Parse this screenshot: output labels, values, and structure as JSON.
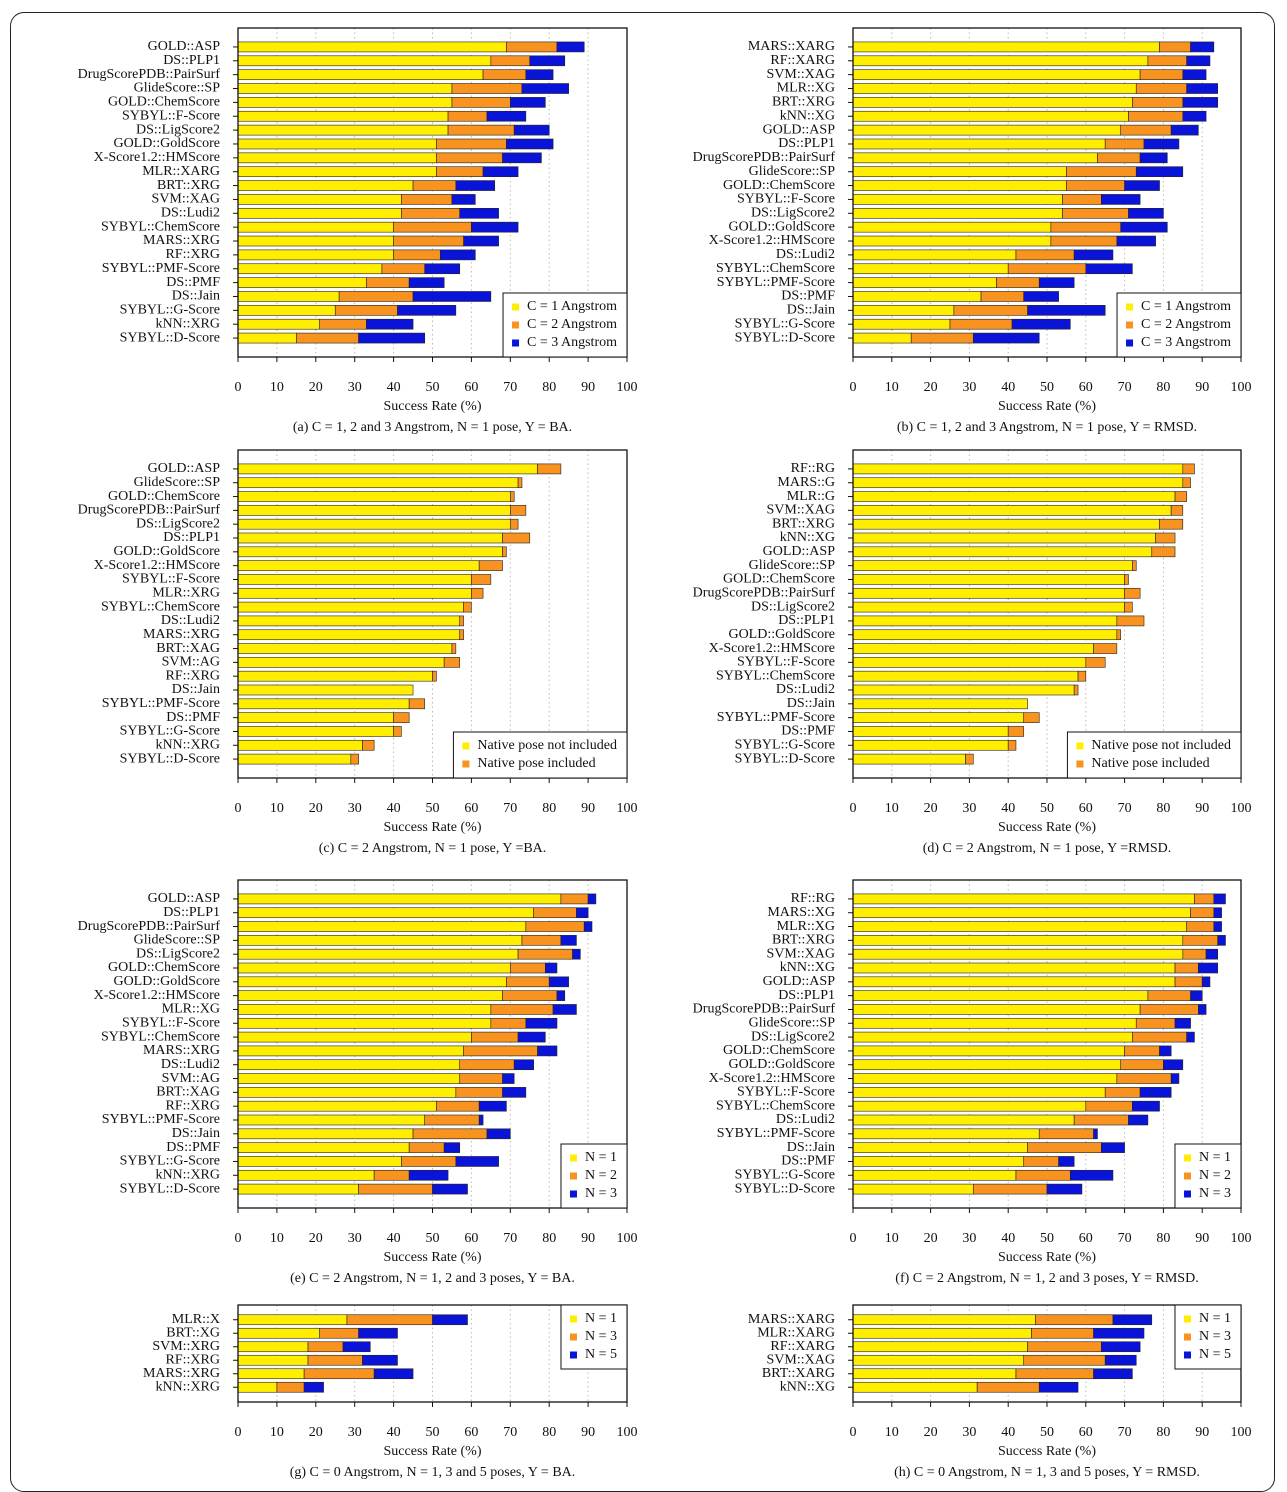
{
  "chart_data": [
    {
      "type": "stacked-barh",
      "caption": "(a) C = 1, 2 and 3 Angstrom, N = 1 pose, Y = BA.",
      "xlabel": "Success Rate (%)",
      "categories": [
        "GOLD::ASP",
        "DS::PLP1",
        "DrugScorePDB::PairSurf",
        "GlideScore::SP",
        "GOLD::ChemScore",
        "SYBYL::F-Score",
        "DS::LigScore2",
        "GOLD::GoldScore",
        "X-Score1.2::HMScore",
        "MLR::XARG",
        "BRT::XRG",
        "SVM::XAG",
        "DS::Ludi2",
        "SYBYL::ChemScore",
        "MARS::XRG",
        "RF::XRG",
        "SYBYL::PMF-Score",
        "DS::PMF",
        "DS::Jain",
        "SYBYL::G-Score",
        "kNN::XRG",
        "SYBYL::D-Score"
      ],
      "series": [
        {
          "name": "C = 1 Angstrom",
          "color": "#ffee00",
          "values": [
            69,
            65,
            63,
            55,
            55,
            54,
            54,
            51,
            51,
            51,
            45,
            42,
            42,
            40,
            40,
            40,
            37,
            33,
            26,
            25,
            21,
            15
          ]
        },
        {
          "name": "C = 2 Angstrom",
          "color": "#f7931e",
          "values": [
            13,
            10,
            11,
            18,
            15,
            10,
            17,
            18,
            17,
            12,
            11,
            13,
            15,
            20,
            18,
            12,
            11,
            11,
            19,
            16,
            12,
            16
          ]
        },
        {
          "name": "C = 3 Angstrom",
          "color": "#0a14d8",
          "values": [
            7,
            9,
            7,
            12,
            9,
            10,
            9,
            12,
            10,
            9,
            10,
            6,
            10,
            12,
            9,
            9,
            9,
            9,
            20,
            15,
            12,
            17
          ]
        }
      ],
      "xlim": [
        0,
        100
      ],
      "xticks": [
        0,
        10,
        20,
        30,
        40,
        50,
        60,
        70,
        80,
        90,
        100
      ],
      "grid": true,
      "legend": "lower right"
    },
    {
      "type": "stacked-barh",
      "caption": "(b) C = 1, 2 and 3 Angstrom, N = 1 pose, Y = RMSD.",
      "xlabel": "Success Rate (%)",
      "categories": [
        "MARS::XARG",
        "RF::XARG",
        "SVM::XAG",
        "MLR::XG",
        "BRT::XRG",
        "kNN::XG",
        "GOLD::ASP",
        "DS::PLP1",
        "DrugScorePDB::PairSurf",
        "GlideScore::SP",
        "GOLD::ChemScore",
        "SYBYL::F-Score",
        "DS::LigScore2",
        "GOLD::GoldScore",
        "X-Score1.2::HMScore",
        "DS::Ludi2",
        "SYBYL::ChemScore",
        "SYBYL::PMF-Score",
        "DS::PMF",
        "DS::Jain",
        "SYBYL::G-Score",
        "SYBYL::D-Score"
      ],
      "series": [
        {
          "name": "C = 1 Angstrom",
          "color": "#ffee00",
          "values": [
            79,
            76,
            74,
            73,
            72,
            71,
            69,
            65,
            63,
            55,
            55,
            54,
            54,
            51,
            51,
            42,
            40,
            37,
            33,
            26,
            25,
            15
          ]
        },
        {
          "name": "C = 2 Angstrom",
          "color": "#f7931e",
          "values": [
            8,
            10,
            11,
            13,
            13,
            14,
            13,
            10,
            11,
            18,
            15,
            10,
            17,
            18,
            17,
            15,
            20,
            11,
            11,
            19,
            16,
            16
          ]
        },
        {
          "name": "C = 3 Angstrom",
          "color": "#0a14d8",
          "values": [
            6,
            6,
            6,
            8,
            9,
            6,
            7,
            9,
            7,
            12,
            9,
            10,
            9,
            12,
            10,
            10,
            12,
            9,
            9,
            20,
            15,
            17
          ]
        }
      ],
      "xlim": [
        0,
        100
      ],
      "xticks": [
        0,
        10,
        20,
        30,
        40,
        50,
        60,
        70,
        80,
        90,
        100
      ],
      "grid": true,
      "legend": "lower right"
    },
    {
      "type": "stacked-barh",
      "caption": "(c) C = 2 Angstrom, N = 1 pose, Y =BA.",
      "xlabel": "Success Rate (%)",
      "categories": [
        "GOLD::ASP",
        "GlideScore::SP",
        "GOLD::ChemScore",
        "DrugScorePDB::PairSurf",
        "DS::LigScore2",
        "DS::PLP1",
        "GOLD::GoldScore",
        "X-Score1.2::HMScore",
        "SYBYL::F-Score",
        "MLR::XRG",
        "SYBYL::ChemScore",
        "DS::Ludi2",
        "MARS::XRG",
        "BRT::XAG",
        "SVM::AG",
        "RF::XRG",
        "DS::Jain",
        "SYBYL::PMF-Score",
        "DS::PMF",
        "SYBYL::G-Score",
        "kNN::XRG",
        "SYBYL::D-Score"
      ],
      "series": [
        {
          "name": "Native pose not included",
          "color": "#ffee00",
          "values": [
            77,
            72,
            70,
            70,
            70,
            68,
            68,
            62,
            60,
            60,
            58,
            57,
            57,
            55,
            53,
            50,
            45,
            44,
            40,
            40,
            32,
            29
          ]
        },
        {
          "name": "Native pose included",
          "color": "#f7931e",
          "values": [
            6,
            1,
            1,
            4,
            2,
            7,
            1,
            6,
            5,
            3,
            2,
            1,
            1,
            1,
            4,
            1,
            0,
            4,
            4,
            2,
            3,
            2
          ]
        }
      ],
      "xlim": [
        0,
        100
      ],
      "xticks": [
        0,
        10,
        20,
        30,
        40,
        50,
        60,
        70,
        80,
        90,
        100
      ],
      "grid": true,
      "legend": "lower right"
    },
    {
      "type": "stacked-barh",
      "caption": "(d) C = 2 Angstrom, N = 1 pose, Y =RMSD.",
      "xlabel": "Success Rate (%)",
      "categories": [
        "RF::RG",
        "MARS::G",
        "MLR::G",
        "SVM::XAG",
        "BRT::XRG",
        "kNN::XG",
        "GOLD::ASP",
        "GlideScore::SP",
        "GOLD::ChemScore",
        "DrugScorePDB::PairSurf",
        "DS::LigScore2",
        "DS::PLP1",
        "GOLD::GoldScore",
        "X-Score1.2::HMScore",
        "SYBYL::F-Score",
        "SYBYL::ChemScore",
        "DS::Ludi2",
        "DS::Jain",
        "SYBYL::PMF-Score",
        "DS::PMF",
        "SYBYL::G-Score",
        "SYBYL::D-Score"
      ],
      "series": [
        {
          "name": "Native pose not included",
          "color": "#ffee00",
          "values": [
            85,
            85,
            83,
            82,
            79,
            78,
            77,
            72,
            70,
            70,
            70,
            68,
            68,
            62,
            60,
            58,
            57,
            45,
            44,
            40,
            40,
            29
          ]
        },
        {
          "name": "Native pose included",
          "color": "#f7931e",
          "values": [
            3,
            2,
            3,
            3,
            6,
            5,
            6,
            1,
            1,
            4,
            2,
            7,
            1,
            6,
            5,
            2,
            1,
            0,
            4,
            4,
            2,
            2
          ]
        }
      ],
      "xlim": [
        0,
        100
      ],
      "xticks": [
        0,
        10,
        20,
        30,
        40,
        50,
        60,
        70,
        80,
        90,
        100
      ],
      "grid": true,
      "legend": "lower right"
    },
    {
      "type": "stacked-barh",
      "caption": "(e) C = 2 Angstrom, N = 1, 2 and 3 poses, Y = BA.",
      "xlabel": "Success Rate (%)",
      "categories": [
        "GOLD::ASP",
        "DS::PLP1",
        "DrugScorePDB::PairSurf",
        "GlideScore::SP",
        "DS::LigScore2",
        "GOLD::ChemScore",
        "GOLD::GoldScore",
        "X-Score1.2::HMScore",
        "MLR::XG",
        "SYBYL::F-Score",
        "SYBYL::ChemScore",
        "MARS::XRG",
        "DS::Ludi2",
        "SVM::AG",
        "BRT::XAG",
        "RF::XRG",
        "SYBYL::PMF-Score",
        "DS::Jain",
        "DS::PMF",
        "SYBYL::G-Score",
        "kNN::XRG",
        "SYBYL::D-Score"
      ],
      "series": [
        {
          "name": "N = 1",
          "color": "#ffee00",
          "values": [
            83,
            76,
            74,
            73,
            72,
            70,
            69,
            68,
            65,
            65,
            60,
            58,
            57,
            57,
            56,
            51,
            48,
            45,
            44,
            42,
            35,
            31
          ]
        },
        {
          "name": "N = 2",
          "color": "#f7931e",
          "values": [
            7,
            11,
            15,
            10,
            14,
            9,
            11,
            14,
            16,
            9,
            12,
            19,
            14,
            11,
            12,
            11,
            14,
            19,
            9,
            14,
            9,
            19
          ]
        },
        {
          "name": "N = 3",
          "color": "#0a14d8",
          "values": [
            2,
            3,
            2,
            4,
            2,
            3,
            5,
            2,
            6,
            8,
            7,
            5,
            5,
            3,
            6,
            7,
            1,
            6,
            4,
            11,
            10,
            9
          ]
        }
      ],
      "xlim": [
        0,
        100
      ],
      "xticks": [
        0,
        10,
        20,
        30,
        40,
        50,
        60,
        70,
        80,
        90,
        100
      ],
      "grid": true,
      "legend": "lower right"
    },
    {
      "type": "stacked-barh",
      "caption": "(f) C = 2 Angstrom, N = 1, 2 and 3 poses, Y = RMSD.",
      "xlabel": "Success Rate (%)",
      "categories": [
        "RF::RG",
        "MARS::XG",
        "MLR::XG",
        "BRT::XRG",
        "SVM::XAG",
        "kNN::XG",
        "GOLD::ASP",
        "DS::PLP1",
        "DrugScorePDB::PairSurf",
        "GlideScore::SP",
        "DS::LigScore2",
        "GOLD::ChemScore",
        "GOLD::GoldScore",
        "X-Score1.2::HMScore",
        "SYBYL::F-Score",
        "SYBYL::ChemScore",
        "DS::Ludi2",
        "SYBYL::PMF-Score",
        "DS::Jain",
        "DS::PMF",
        "SYBYL::G-Score",
        "SYBYL::D-Score"
      ],
      "series": [
        {
          "name": "N = 1",
          "color": "#ffee00",
          "values": [
            88,
            87,
            86,
            85,
            85,
            83,
            83,
            76,
            74,
            73,
            72,
            70,
            69,
            68,
            65,
            60,
            57,
            48,
            45,
            44,
            42,
            31
          ]
        },
        {
          "name": "N = 2",
          "color": "#f7931e",
          "values": [
            5,
            6,
            7,
            9,
            6,
            6,
            7,
            11,
            15,
            10,
            14,
            9,
            11,
            14,
            9,
            12,
            14,
            14,
            19,
            9,
            14,
            19
          ]
        },
        {
          "name": "N = 3",
          "color": "#0a14d8",
          "values": [
            3,
            2,
            2,
            2,
            3,
            5,
            2,
            3,
            2,
            4,
            2,
            3,
            5,
            2,
            8,
            7,
            5,
            1,
            6,
            4,
            11,
            9
          ]
        }
      ],
      "xlim": [
        0,
        100
      ],
      "xticks": [
        0,
        10,
        20,
        30,
        40,
        50,
        60,
        70,
        80,
        90,
        100
      ],
      "grid": true,
      "legend": "lower right"
    },
    {
      "type": "stacked-barh",
      "caption": "(g) C = 0 Angstrom, N = 1, 3 and 5 poses, Y = BA.",
      "xlabel": "Success Rate (%)",
      "categories": [
        "MLR::X",
        "BRT::XG",
        "SVM::XRG",
        "RF::XRG",
        "MARS::XRG",
        "kNN::XRG"
      ],
      "series": [
        {
          "name": "N = 1",
          "color": "#ffee00",
          "values": [
            28,
            21,
            18,
            18,
            17,
            10
          ]
        },
        {
          "name": "N = 3",
          "color": "#f7931e",
          "values": [
            22,
            10,
            9,
            14,
            18,
            7
          ]
        },
        {
          "name": "N = 5",
          "color": "#0a14d8",
          "values": [
            9,
            10,
            7,
            9,
            10,
            5
          ]
        }
      ],
      "xlim": [
        0,
        100
      ],
      "xticks": [
        0,
        10,
        20,
        30,
        40,
        50,
        60,
        70,
        80,
        90,
        100
      ],
      "grid": true,
      "legend": "upper right"
    },
    {
      "type": "stacked-barh",
      "caption": "(h) C = 0 Angstrom, N = 1, 3 and 5 poses, Y = RMSD.",
      "xlabel": "Success Rate (%)",
      "categories": [
        "MARS::XARG",
        "MLR::XARG",
        "RF::XARG",
        "SVM::XAG",
        "BRT::XARG",
        "kNN::XG"
      ],
      "series": [
        {
          "name": "N = 1",
          "color": "#ffee00",
          "values": [
            47,
            46,
            45,
            44,
            42,
            32
          ]
        },
        {
          "name": "N = 3",
          "color": "#f7931e",
          "values": [
            20,
            16,
            19,
            21,
            20,
            16
          ]
        },
        {
          "name": "N = 5",
          "color": "#0a14d8",
          "values": [
            10,
            13,
            10,
            8,
            10,
            10
          ]
        }
      ],
      "xlim": [
        0,
        100
      ],
      "xticks": [
        0,
        10,
        20,
        30,
        40,
        50,
        60,
        70,
        80,
        90,
        100
      ],
      "grid": true,
      "legend": "upper right"
    }
  ]
}
